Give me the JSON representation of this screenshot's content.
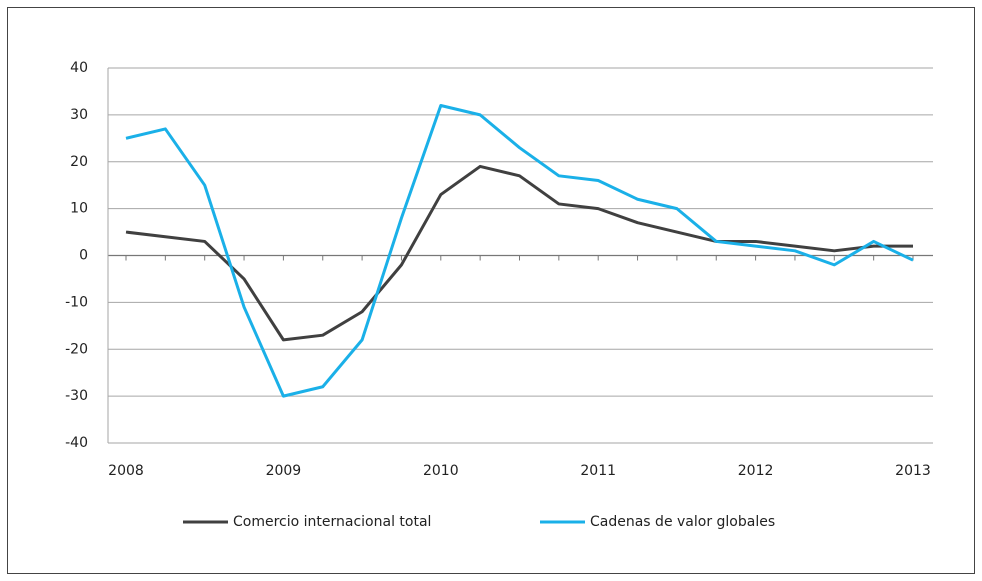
{
  "chart_data": {
    "type": "line",
    "categories": [
      "2008",
      null,
      null,
      null,
      "2009",
      null,
      null,
      null,
      "2010",
      null,
      null,
      null,
      "2011",
      null,
      null,
      null,
      "2012",
      null,
      null,
      null,
      "2013"
    ],
    "series": [
      {
        "name": "Comercio internacional total",
        "color": "#404040",
        "values": [
          5,
          4,
          3,
          -5,
          -18,
          -17,
          -12,
          -2,
          13,
          19,
          17,
          11,
          10,
          7,
          5,
          3,
          3,
          2,
          1,
          2,
          2
        ]
      },
      {
        "name": "Cadenas de valor globales",
        "color": "#1ab0e8",
        "values": [
          25,
          27,
          15,
          -11,
          -30,
          -28,
          -18,
          8,
          32,
          30,
          23,
          17,
          16,
          12,
          10,
          3,
          2,
          1,
          -2,
          3,
          -1
        ]
      }
    ],
    "ylim": [
      -40,
      40
    ],
    "yticks": [
      -40,
      -30,
      -20,
      -10,
      0,
      10,
      20,
      30,
      40
    ],
    "grid": true,
    "legend": "bottom"
  }
}
